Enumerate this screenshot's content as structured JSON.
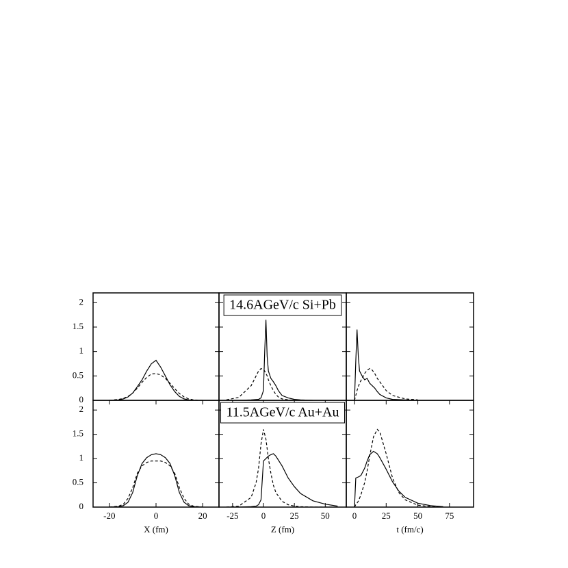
{
  "chart_data": [
    {
      "type": "line",
      "xlim": [
        -27,
        27
      ],
      "ylim": [
        0,
        2.2
      ],
      "yticks": [
        0,
        0.5,
        1,
        1.5,
        2
      ],
      "x": [
        -20,
        -16,
        -14,
        -12,
        -10,
        -8,
        -6,
        -4,
        -2,
        0,
        2,
        4,
        6,
        8,
        10,
        12,
        14,
        16,
        20
      ],
      "series": [
        {
          "color": "#000000",
          "dash": false,
          "values": [
            0,
            0.01,
            0.03,
            0.07,
            0.15,
            0.28,
            0.42,
            0.6,
            0.75,
            0.82,
            0.68,
            0.5,
            0.32,
            0.18,
            0.08,
            0.03,
            0.01,
            0,
            0
          ]
        },
        {
          "color": "#000000",
          "dash": true,
          "values": [
            0,
            0.02,
            0.04,
            0.08,
            0.15,
            0.25,
            0.37,
            0.47,
            0.54,
            0.55,
            0.52,
            0.45,
            0.35,
            0.24,
            0.14,
            0.07,
            0.03,
            0.01,
            0
          ]
        }
      ]
    },
    {
      "type": "line",
      "xlim": [
        -36,
        67
      ],
      "ylim": [
        0,
        2.2
      ],
      "title": "14.6AGeV/c Si+Pb",
      "x": [
        -30,
        -20,
        -10,
        -4,
        -2,
        0,
        1,
        2,
        3,
        4,
        6,
        8,
        10,
        12,
        15,
        20,
        25,
        30,
        40
      ],
      "series": [
        {
          "color": "#000000",
          "dash": false,
          "values": [
            0,
            0,
            0.01,
            0.02,
            0.05,
            0.2,
            1.0,
            1.65,
            0.9,
            0.6,
            0.45,
            0.38,
            0.3,
            0.2,
            0.1,
            0.05,
            0.02,
            0.01,
            0
          ]
        },
        {
          "color": "#000000",
          "dash": true,
          "values": [
            0.01,
            0.06,
            0.3,
            0.6,
            0.65,
            0.63,
            0.6,
            0.55,
            0.5,
            0.42,
            0.3,
            0.2,
            0.12,
            0.07,
            0.03,
            0.01,
            0,
            0,
            0
          ]
        }
      ]
    },
    {
      "type": "line",
      "xlim": [
        -6.5,
        94
      ],
      "ylim": [
        0,
        2.2
      ],
      "x": [
        0,
        1,
        2,
        3,
        4,
        6,
        8,
        10,
        12,
        14,
        16,
        18,
        20,
        25,
        30,
        40,
        50
      ],
      "series": [
        {
          "color": "#000000",
          "dash": false,
          "values": [
            0,
            0.8,
            1.45,
            0.9,
            0.6,
            0.5,
            0.42,
            0.45,
            0.35,
            0.3,
            0.25,
            0.18,
            0.12,
            0.05,
            0.02,
            0.01,
            0
          ]
        },
        {
          "color": "#000000",
          "dash": true,
          "values": [
            0,
            0.1,
            0.2,
            0.28,
            0.35,
            0.45,
            0.55,
            0.62,
            0.65,
            0.62,
            0.55,
            0.45,
            0.38,
            0.2,
            0.1,
            0.03,
            0.01
          ]
        }
      ]
    },
    {
      "type": "line",
      "xlim": [
        -27,
        27
      ],
      "ylim": [
        0,
        2.2
      ],
      "yticks": [
        0,
        0.5,
        1,
        1.5,
        2
      ],
      "xticks": [
        -20,
        0,
        20
      ],
      "xlabel": "X (fm)",
      "x": [
        -20,
        -16,
        -14,
        -12,
        -10,
        -8,
        -6,
        -4,
        -2,
        0,
        2,
        4,
        6,
        8,
        10,
        12,
        14,
        16,
        20
      ],
      "series": [
        {
          "color": "#000000",
          "dash": false,
          "values": [
            0,
            0.01,
            0.03,
            0.1,
            0.3,
            0.65,
            0.9,
            1.02,
            1.08,
            1.1,
            1.08,
            1.02,
            0.9,
            0.65,
            0.3,
            0.1,
            0.03,
            0.01,
            0
          ]
        },
        {
          "color": "#000000",
          "dash": true,
          "values": [
            0,
            0.02,
            0.06,
            0.18,
            0.4,
            0.7,
            0.85,
            0.92,
            0.95,
            0.95,
            0.95,
            0.92,
            0.85,
            0.7,
            0.4,
            0.18,
            0.06,
            0.02,
            0
          ]
        }
      ]
    },
    {
      "type": "line",
      "xlim": [
        -36,
        67
      ],
      "ylim": [
        0,
        2.2
      ],
      "xticks": [
        -25,
        0,
        25,
        50
      ],
      "xlabel": "Z (fm)",
      "title": "11.5AGeV/c Au+Au",
      "x": [
        -30,
        -20,
        -10,
        -6,
        -4,
        -2,
        0,
        2,
        4,
        6,
        8,
        10,
        15,
        20,
        25,
        30,
        40,
        50,
        60
      ],
      "series": [
        {
          "color": "#000000",
          "dash": false,
          "values": [
            0,
            0,
            0.01,
            0.02,
            0.05,
            0.15,
            0.95,
            1.0,
            1.05,
            1.08,
            1.1,
            1.05,
            0.85,
            0.6,
            0.42,
            0.28,
            0.13,
            0.06,
            0.02
          ]
        },
        {
          "color": "#000000",
          "dash": true,
          "values": [
            0,
            0.02,
            0.2,
            0.5,
            0.8,
            1.3,
            1.6,
            1.4,
            1.0,
            0.7,
            0.45,
            0.3,
            0.12,
            0.05,
            0.02,
            0.01,
            0,
            0,
            0
          ]
        }
      ]
    },
    {
      "type": "line",
      "xlim": [
        -6.5,
        94
      ],
      "ylim": [
        0,
        2.2
      ],
      "xticks": [
        0,
        25,
        50,
        75
      ],
      "xlabel": "t (fm/c)",
      "x": [
        0,
        1,
        3,
        5,
        8,
        10,
        12,
        15,
        18,
        20,
        25,
        30,
        35,
        40,
        50,
        60,
        70
      ],
      "series": [
        {
          "color": "#000000",
          "dash": false,
          "values": [
            0,
            0.6,
            0.62,
            0.65,
            0.8,
            0.95,
            1.08,
            1.15,
            1.1,
            1.02,
            0.78,
            0.52,
            0.33,
            0.2,
            0.08,
            0.03,
            0.01
          ]
        },
        {
          "color": "#000000",
          "dash": true,
          "values": [
            0,
            0.05,
            0.12,
            0.25,
            0.5,
            0.75,
            1.05,
            1.45,
            1.6,
            1.55,
            1.1,
            0.6,
            0.3,
            0.15,
            0.04,
            0.01,
            0
          ]
        }
      ]
    }
  ]
}
